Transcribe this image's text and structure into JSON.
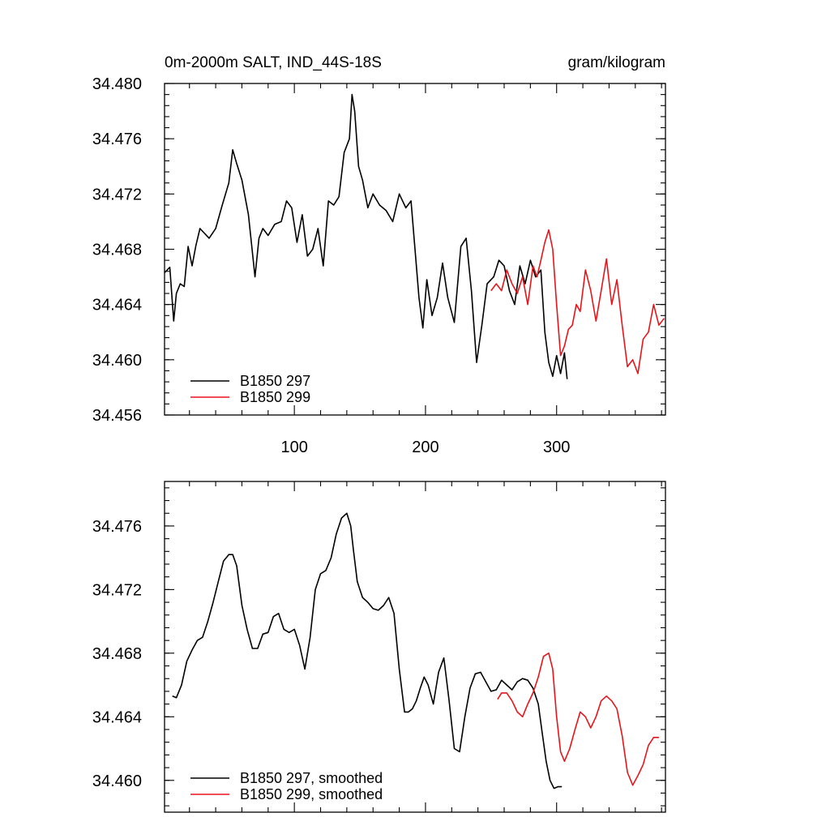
{
  "colors": {
    "run1": "#000000",
    "run2": "#e8141a",
    "axis": "#000000",
    "background": "#ffffff"
  },
  "chart_data": [
    {
      "type": "line",
      "title": "0m-2000m SALT, IND_44S-18S",
      "units": "gram/kilogram",
      "xlim": [
        1,
        383
      ],
      "ylim": [
        34.456,
        34.48
      ],
      "x_ticks": [
        100,
        200,
        300
      ],
      "x_tick_labels": [
        "100",
        "200",
        "300"
      ],
      "y_ticks": [
        34.456,
        34.46,
        34.464,
        34.468,
        34.472,
        34.476,
        34.48
      ],
      "y_tick_labels": [
        "34.456",
        "34.460",
        "34.464",
        "34.468",
        "34.472",
        "34.476",
        "34.480"
      ],
      "grid": false,
      "legend": "bottom-left",
      "series": [
        {
          "name": "B1850 297",
          "color": "#000000",
          "x": [
            1,
            5,
            8,
            10,
            13,
            16,
            19,
            22,
            25,
            28,
            31,
            35,
            40,
            45,
            50,
            53,
            56,
            60,
            65,
            70,
            73,
            76,
            80,
            85,
            90,
            94,
            98,
            102,
            106,
            110,
            114,
            118,
            122,
            126,
            130,
            134,
            138,
            142,
            144,
            146,
            149,
            152,
            156,
            160,
            165,
            170,
            175,
            180,
            185,
            189,
            192,
            195,
            198,
            201,
            205,
            209,
            213,
            217,
            222,
            227,
            231,
            235,
            239,
            243,
            247,
            252,
            256,
            260,
            264,
            268,
            272,
            276,
            280,
            284,
            288,
            291,
            294,
            297,
            300,
            303,
            306,
            308
          ],
          "y": [
            34.4663,
            34.4667,
            34.4628,
            34.4648,
            34.4655,
            34.4653,
            34.4682,
            34.4668,
            34.4683,
            34.4695,
            34.4692,
            34.4688,
            34.4695,
            34.4712,
            34.4728,
            34.4752,
            34.4742,
            34.473,
            34.4705,
            34.466,
            34.4688,
            34.4695,
            34.469,
            34.4698,
            34.47,
            34.4715,
            34.471,
            34.4685,
            34.4705,
            34.4675,
            34.468,
            34.4695,
            34.4668,
            34.4715,
            34.4712,
            34.4718,
            34.475,
            34.476,
            34.4792,
            34.478,
            34.474,
            34.473,
            34.471,
            34.472,
            34.4712,
            34.4708,
            34.47,
            34.472,
            34.471,
            34.4715,
            34.468,
            34.4645,
            34.4623,
            34.4658,
            34.4632,
            34.4645,
            34.467,
            34.4645,
            34.4627,
            34.4682,
            34.4688,
            34.465,
            34.4598,
            34.4625,
            34.4655,
            34.466,
            34.4672,
            34.4668,
            34.465,
            34.464,
            34.4668,
            34.4655,
            34.4672,
            34.466,
            34.4665,
            34.462,
            34.4598,
            34.4588,
            34.4603,
            34.459,
            34.4605,
            34.4586
          ]
        },
        {
          "name": "B1850 299",
          "color": "#e8141a",
          "x": [
            250,
            254,
            258,
            262,
            266,
            270,
            274,
            278,
            282,
            285,
            288,
            291,
            294,
            297,
            300,
            303,
            306,
            309,
            312,
            315,
            318,
            322,
            326,
            330,
            334,
            338,
            342,
            346,
            350,
            354,
            358,
            362,
            366,
            370,
            374,
            378,
            382
          ],
          "y": [
            34.465,
            34.4655,
            34.465,
            34.4665,
            34.4655,
            34.4648,
            34.466,
            34.464,
            34.4668,
            34.466,
            34.4672,
            34.4685,
            34.4694,
            34.468,
            34.464,
            34.4603,
            34.461,
            34.4622,
            34.4625,
            34.464,
            34.4635,
            34.4665,
            34.465,
            34.4628,
            34.465,
            34.4673,
            34.464,
            34.4658,
            34.4625,
            34.4595,
            34.46,
            34.459,
            34.4615,
            34.462,
            34.464,
            34.4625,
            34.463
          ]
        }
      ]
    },
    {
      "type": "line",
      "xlim": [
        1,
        383
      ],
      "ylim": [
        34.458,
        34.4788
      ],
      "x_ticks": [
        100,
        200,
        300
      ],
      "y_ticks": [
        34.46,
        34.464,
        34.468,
        34.472,
        34.476
      ],
      "y_tick_labels": [
        "34.460",
        "34.464",
        "34.468",
        "34.472",
        "34.476"
      ],
      "grid": false,
      "legend": "bottom-left",
      "series": [
        {
          "name": "B1850 297, smoothed",
          "color": "#000000",
          "x": [
            7,
            10,
            14,
            18,
            22,
            26,
            30,
            34,
            38,
            42,
            46,
            50,
            53,
            56,
            60,
            64,
            68,
            72,
            76,
            80,
            84,
            88,
            92,
            96,
            100,
            104,
            108,
            112,
            116,
            120,
            124,
            128,
            132,
            136,
            140,
            143,
            145,
            148,
            152,
            156,
            160,
            164,
            168,
            172,
            176,
            180,
            184,
            187,
            190,
            193,
            196,
            199,
            202,
            206,
            210,
            214,
            218,
            222,
            226,
            230,
            234,
            238,
            242,
            246,
            250,
            254,
            258,
            262,
            266,
            270,
            274,
            278,
            282,
            286,
            289,
            292,
            295,
            298,
            301,
            304
          ],
          "y": [
            34.4653,
            34.4652,
            34.466,
            34.4675,
            34.4682,
            34.4688,
            34.469,
            34.47,
            34.4712,
            34.4725,
            34.4738,
            34.4742,
            34.4742,
            34.4735,
            34.471,
            34.4695,
            34.4683,
            34.4683,
            34.4692,
            34.4693,
            34.4703,
            34.4705,
            34.4695,
            34.4693,
            34.4695,
            34.4685,
            34.467,
            34.469,
            34.472,
            34.473,
            34.4732,
            34.474,
            34.4755,
            34.4765,
            34.4768,
            34.476,
            34.4745,
            34.4725,
            34.4715,
            34.4712,
            34.4708,
            34.4707,
            34.471,
            34.4715,
            34.4705,
            34.467,
            34.4643,
            34.4643,
            34.4645,
            34.465,
            34.4658,
            34.4665,
            34.466,
            34.4648,
            34.4668,
            34.4677,
            34.465,
            34.462,
            34.4618,
            34.464,
            34.4658,
            34.4667,
            34.4668,
            34.4662,
            34.4656,
            34.4657,
            34.4663,
            34.466,
            34.4657,
            34.4662,
            34.4664,
            34.4663,
            34.4658,
            34.4648,
            34.463,
            34.4612,
            34.46,
            34.4595,
            34.4596,
            34.4596
          ]
        },
        {
          "name": "B1850 299, smoothed",
          "color": "#e8141a",
          "x": [
            255,
            258,
            262,
            266,
            270,
            274,
            278,
            282,
            286,
            290,
            294,
            297,
            300,
            303,
            306,
            310,
            314,
            318,
            322,
            326,
            330,
            334,
            338,
            342,
            346,
            350,
            354,
            358,
            362,
            366,
            370,
            374,
            378
          ],
          "y": [
            34.4651,
            34.4655,
            34.4655,
            34.465,
            34.4643,
            34.464,
            34.4648,
            34.4655,
            34.4665,
            34.4678,
            34.468,
            34.467,
            34.464,
            34.4618,
            34.4612,
            34.462,
            34.4632,
            34.4643,
            34.464,
            34.4633,
            34.464,
            34.465,
            34.4653,
            34.465,
            34.4645,
            34.4628,
            34.4605,
            34.4597,
            34.4603,
            34.461,
            34.4622,
            34.4627,
            34.4627
          ]
        }
      ]
    }
  ]
}
